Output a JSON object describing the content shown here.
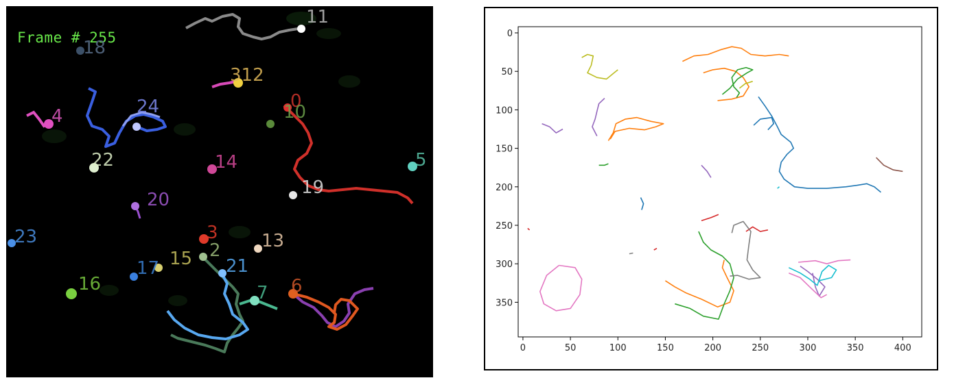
{
  "left_panel": {
    "frame_label": "Frame # 255",
    "track_labels": [
      {
        "text": "11",
        "color": "#bbbbbb"
      },
      {
        "text": "18",
        "color": "#5a6f8a"
      },
      {
        "text": "312",
        "color": "#e0b85a"
      },
      {
        "text": "4",
        "color": "#e05ac0"
      },
      {
        "text": "24",
        "color": "#7f8cf0"
      },
      {
        "text": "0",
        "color": "#d0342c"
      },
      {
        "text": "10",
        "color": "#6da04a"
      },
      {
        "text": "22",
        "color": "#dfefc8"
      },
      {
        "text": "14",
        "color": "#d84a9c"
      },
      {
        "text": "5",
        "color": "#5ac4a8"
      },
      {
        "text": "19",
        "color": "#dddddd"
      },
      {
        "text": "20",
        "color": "#a35ad0"
      },
      {
        "text": "23",
        "color": "#4a8fe0"
      },
      {
        "text": "3",
        "color": "#e03a2a"
      },
      {
        "text": "2",
        "color": "#9ab87a"
      },
      {
        "text": "13",
        "color": "#e8c8a8"
      },
      {
        "text": "15",
        "color": "#c8c060"
      },
      {
        "text": "17",
        "color": "#3a7fd0"
      },
      {
        "text": "21",
        "color": "#58a8f0"
      },
      {
        "text": "16",
        "color": "#7ac840"
      },
      {
        "text": "7",
        "color": "#4ab890"
      },
      {
        "text": "6",
        "color": "#d0582a"
      }
    ]
  },
  "chart_data": {
    "type": "line",
    "xlim": [
      -5,
      420
    ],
    "ylim": [
      395,
      -8
    ],
    "x_ticks": [
      0,
      50,
      100,
      150,
      200,
      250,
      300,
      350,
      400
    ],
    "y_ticks": [
      0,
      50,
      100,
      150,
      200,
      250,
      300,
      350
    ],
    "grid": false,
    "series": [
      {
        "color": "#1f77b4",
        "points": [
          [
            248,
            83
          ],
          [
            255,
            95
          ],
          [
            262,
            108
          ],
          [
            268,
            122
          ],
          [
            272,
            132
          ],
          [
            278,
            138
          ],
          [
            282,
            142
          ],
          [
            285,
            150
          ],
          [
            278,
            158
          ],
          [
            272,
            168
          ],
          [
            270,
            180
          ],
          [
            275,
            190
          ],
          [
            286,
            200
          ],
          [
            300,
            202
          ],
          [
            320,
            202
          ],
          [
            340,
            200
          ],
          [
            352,
            198
          ],
          [
            362,
            196
          ],
          [
            370,
            200
          ],
          [
            377,
            207
          ]
        ]
      },
      {
        "color": "#1f77b4",
        "points": [
          [
            243,
            120
          ],
          [
            250,
            112
          ],
          [
            262,
            110
          ],
          [
            264,
            118
          ],
          [
            258,
            126
          ]
        ]
      },
      {
        "color": "#1f77b4",
        "points": [
          [
            124,
            214
          ],
          [
            127,
            222
          ],
          [
            125,
            230
          ]
        ]
      },
      {
        "color": "#ff7f0e",
        "points": [
          [
            168,
            37
          ],
          [
            180,
            30
          ],
          [
            195,
            28
          ],
          [
            208,
            22
          ],
          [
            220,
            18
          ],
          [
            230,
            20
          ],
          [
            240,
            28
          ],
          [
            255,
            30
          ],
          [
            270,
            28
          ],
          [
            280,
            30
          ]
        ]
      },
      {
        "color": "#ff7f0e",
        "points": [
          [
            190,
            52
          ],
          [
            200,
            48
          ],
          [
            212,
            46
          ],
          [
            224,
            50
          ],
          [
            232,
            58
          ],
          [
            238,
            70
          ],
          [
            232,
            82
          ],
          [
            220,
            86
          ],
          [
            205,
            88
          ]
        ]
      },
      {
        "color": "#ff7f0e",
        "points": [
          [
            90,
            140
          ],
          [
            95,
            130
          ],
          [
            98,
            118
          ],
          [
            108,
            112
          ],
          [
            120,
            110
          ],
          [
            135,
            115
          ],
          [
            148,
            118
          ],
          [
            140,
            122
          ],
          [
            128,
            126
          ],
          [
            112,
            124
          ],
          [
            97,
            128
          ],
          [
            92,
            138
          ]
        ]
      },
      {
        "color": "#ff7f0e",
        "points": [
          [
            150,
            322
          ],
          [
            160,
            330
          ],
          [
            172,
            338
          ],
          [
            188,
            346
          ],
          [
            205,
            356
          ],
          [
            218,
            350
          ],
          [
            222,
            335
          ],
          [
            215,
            318
          ],
          [
            210,
            305
          ],
          [
            212,
            295
          ]
        ]
      },
      {
        "color": "#2ca02c",
        "points": [
          [
            210,
            80
          ],
          [
            218,
            72
          ],
          [
            226,
            60
          ],
          [
            236,
            52
          ],
          [
            242,
            48
          ],
          [
            235,
            45
          ],
          [
            226,
            48
          ],
          [
            220,
            58
          ],
          [
            222,
            70
          ],
          [
            228,
            78
          ],
          [
            225,
            84
          ]
        ]
      },
      {
        "color": "#2ca02c",
        "points": [
          [
            80,
            172
          ],
          [
            86,
            172
          ],
          [
            90,
            170
          ]
        ]
      },
      {
        "color": "#2ca02c",
        "points": [
          [
            185,
            258
          ],
          [
            190,
            272
          ],
          [
            198,
            282
          ],
          [
            210,
            290
          ],
          [
            218,
            300
          ],
          [
            222,
            318
          ],
          [
            218,
            335
          ],
          [
            212,
            352
          ],
          [
            206,
            372
          ],
          [
            190,
            368
          ],
          [
            176,
            358
          ],
          [
            160,
            352
          ]
        ]
      },
      {
        "color": "#d62728",
        "points": [
          [
            235,
            258
          ],
          [
            242,
            252
          ],
          [
            250,
            258
          ],
          [
            258,
            256
          ]
        ]
      },
      {
        "color": "#d62728",
        "points": [
          [
            188,
            244
          ],
          [
            198,
            240
          ],
          [
            206,
            236
          ]
        ]
      },
      {
        "color": "#d62728",
        "points": [
          [
            5,
            254
          ],
          [
            7,
            256
          ]
        ]
      },
      {
        "color": "#d62728",
        "points": [
          [
            138,
            282
          ],
          [
            141,
            280
          ]
        ]
      },
      {
        "color": "#9467bd",
        "points": [
          [
            20,
            118
          ],
          [
            28,
            122
          ],
          [
            35,
            130
          ],
          [
            42,
            125
          ]
        ]
      },
      {
        "color": "#9467bd",
        "points": [
          [
            86,
            85
          ],
          [
            80,
            92
          ],
          [
            78,
            102
          ],
          [
            76,
            112
          ],
          [
            73,
            122
          ],
          [
            78,
            134
          ]
        ]
      },
      {
        "color": "#9467bd",
        "points": [
          [
            188,
            172
          ],
          [
            194,
            180
          ],
          [
            198,
            188
          ]
        ]
      },
      {
        "color": "#9467bd",
        "points": [
          [
            292,
            303
          ],
          [
            300,
            310
          ],
          [
            310,
            320
          ],
          [
            318,
            330
          ],
          [
            312,
            342
          ],
          [
            308,
            330
          ],
          [
            305,
            312
          ]
        ]
      },
      {
        "color": "#8c564b",
        "points": [
          [
            372,
            162
          ],
          [
            380,
            172
          ],
          [
            390,
            178
          ],
          [
            400,
            180
          ]
        ]
      },
      {
        "color": "#e377c2",
        "points": [
          [
            38,
            302
          ],
          [
            55,
            305
          ],
          [
            62,
            320
          ],
          [
            60,
            340
          ],
          [
            50,
            358
          ],
          [
            35,
            361
          ],
          [
            22,
            352
          ],
          [
            18,
            336
          ],
          [
            25,
            315
          ],
          [
            38,
            302
          ]
        ]
      },
      {
        "color": "#e377c2",
        "points": [
          [
            290,
            298
          ],
          [
            308,
            296
          ],
          [
            320,
            300
          ],
          [
            332,
            296
          ],
          [
            345,
            295
          ]
        ]
      },
      {
        "color": "#e377c2",
        "points": [
          [
            280,
            312
          ],
          [
            292,
            318
          ],
          [
            302,
            330
          ],
          [
            314,
            344
          ],
          [
            320,
            340
          ]
        ]
      },
      {
        "color": "#7f7f7f",
        "points": [
          [
            220,
            260
          ],
          [
            222,
            250
          ],
          [
            232,
            245
          ],
          [
            240,
            258
          ],
          [
            238,
            275
          ],
          [
            236,
            295
          ],
          [
            242,
            308
          ],
          [
            250,
            318
          ],
          [
            238,
            320
          ],
          [
            226,
            315
          ],
          [
            218,
            316
          ]
        ]
      },
      {
        "color": "#7f7f7f",
        "points": [
          [
            112,
            287
          ],
          [
            116,
            286
          ]
        ]
      },
      {
        "color": "#bcbd22",
        "points": [
          [
            62,
            32
          ],
          [
            68,
            28
          ],
          [
            74,
            30
          ],
          [
            72,
            42
          ],
          [
            68,
            52
          ],
          [
            78,
            58
          ],
          [
            88,
            60
          ],
          [
            96,
            52
          ],
          [
            100,
            48
          ]
        ]
      },
      {
        "color": "#bcbd22",
        "points": [
          [
            228,
            72
          ],
          [
            234,
            66
          ],
          [
            242,
            63
          ]
        ]
      },
      {
        "color": "#17becf",
        "points": [
          [
            268,
            202
          ],
          [
            270,
            200
          ]
        ]
      },
      {
        "color": "#17becf",
        "points": [
          [
            280,
            305
          ],
          [
            292,
            312
          ],
          [
            302,
            320
          ],
          [
            310,
            328
          ],
          [
            315,
            310
          ],
          [
            322,
            302
          ],
          [
            330,
            308
          ],
          [
            325,
            318
          ],
          [
            312,
            322
          ]
        ]
      }
    ]
  }
}
